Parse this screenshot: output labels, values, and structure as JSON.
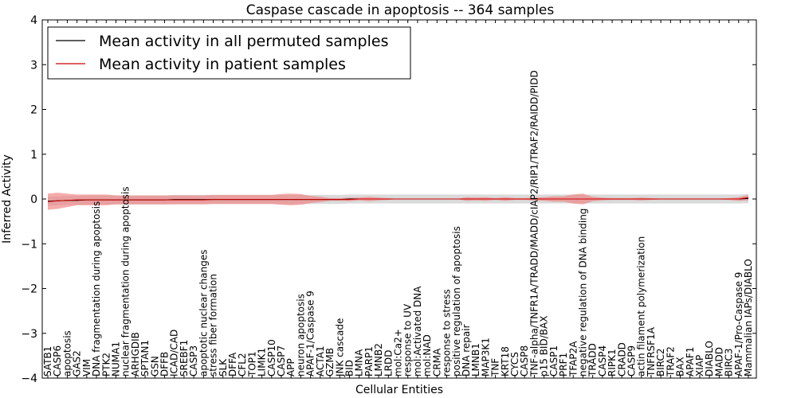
{
  "chart_data": {
    "type": "line",
    "title": "Caspase cascade in apoptosis -- 364 samples",
    "xlabel": "Cellular Entities",
    "ylabel": "Inferred Activity",
    "ylim": [
      -4,
      4
    ],
    "yticks": [
      -4,
      -3,
      -2,
      -1,
      0,
      1,
      2,
      3,
      4
    ],
    "ytick_labels": [
      "−4",
      "−3",
      "−2",
      "−1",
      "0",
      "1",
      "2",
      "3",
      "4"
    ],
    "legend_position": "top-left",
    "categories": [
      "SATB1",
      "CASP6",
      "apoptosis",
      "GAS2",
      "VIM",
      "DNA fragmentation during apoptosis",
      "PTK2",
      "NUMA1",
      "nuclear fragmentation during apoptosis",
      "ARHGDIB",
      "SPTAN1",
      "GSN",
      "DFFB",
      "ICAD/CAD",
      "SREBF1",
      "CASP3",
      "apoptotic nuclear changes",
      "stress fiber formation",
      "SLK",
      "DFFA",
      "CFL2",
      "TOP1",
      "LIMK1",
      "CASP10",
      "CASP7",
      "APP",
      "neuron apoptosis",
      "APAF-1/Caspase 9",
      "ACTA1",
      "GZMB",
      "JNK cascade",
      "BID",
      "LMNA",
      "PARP1",
      "LMNB2",
      "LRDD",
      "mol:Ca2+",
      "response to UV",
      "mol:Activated DNA",
      "mol:NAD",
      "CRMA",
      "response to stress",
      "positive regulation of apoptosis",
      "DNA repair",
      "LMNB1",
      "MAP3K1",
      "TNF",
      "KRT18",
      "CYCS",
      "CASP8",
      "TNF-alpha/TNFR1A/TRADD/MADD/cIAP2/RIP1/TRAF2/RAIDD/PIDD",
      "p15 BID/BAX",
      "CASP1",
      "PRF1",
      "TFAP2A",
      "negative regulation of DNA binding",
      "TRADD",
      "CASP4",
      "RIPK1",
      "CRADD",
      "CASP9",
      "actin filament polymerization",
      "TNFRSF1A",
      "BIRC2",
      "TRAF2",
      "BAX",
      "APAF1",
      "XIAP",
      "DIABLO",
      "MADD",
      "BIRC3",
      "APAF-1/Pro-Caspase 9",
      "Mammalian IAPs/DIABLO"
    ],
    "series": [
      {
        "name": "Mean activity in all permuted samples",
        "color": "#000000",
        "values": [
          -0.05,
          -0.04,
          -0.03,
          -0.03,
          -0.02,
          -0.02,
          -0.02,
          -0.02,
          -0.02,
          -0.02,
          -0.02,
          -0.02,
          -0.02,
          -0.01,
          -0.01,
          -0.01,
          -0.01,
          -0.01,
          -0.01,
          -0.01,
          -0.01,
          -0.01,
          -0.01,
          -0.01,
          -0.01,
          -0.01,
          -0.01,
          -0.01,
          -0.01,
          -0.01,
          -0.01,
          0.0,
          0.0,
          0.0,
          0.0,
          0.0,
          0.0,
          0.0,
          0.0,
          0.0,
          0.0,
          0.0,
          0.0,
          0.0,
          0.0,
          0.0,
          0.0,
          0.0,
          0.0,
          0.0,
          0.0,
          0.0,
          0.0,
          0.0,
          0.0,
          0.0,
          0.0,
          0.0,
          0.0,
          0.0,
          0.0,
          0.0,
          0.0,
          0.0,
          0.0,
          0.0,
          0.0,
          0.0,
          0.0,
          0.0,
          0.0,
          0.0,
          0.01
        ],
        "band": [
          0.1,
          0.1,
          0.1,
          0.1,
          0.1,
          0.1,
          0.1,
          0.1,
          0.1,
          0.1,
          0.1,
          0.1,
          0.1,
          0.1,
          0.1,
          0.1,
          0.1,
          0.1,
          0.1,
          0.1,
          0.1,
          0.1,
          0.1,
          0.1,
          0.1,
          0.1,
          0.1,
          0.1,
          0.1,
          0.1,
          0.1,
          0.1,
          0.1,
          0.1,
          0.1,
          0.1,
          0.1,
          0.1,
          0.1,
          0.1,
          0.1,
          0.1,
          0.1,
          0.1,
          0.1,
          0.1,
          0.1,
          0.1,
          0.1,
          0.1,
          0.1,
          0.1,
          0.1,
          0.1,
          0.1,
          0.1,
          0.1,
          0.1,
          0.1,
          0.1,
          0.1,
          0.1,
          0.1,
          0.1,
          0.1,
          0.1,
          0.1,
          0.1,
          0.1,
          0.1,
          0.1,
          0.1,
          0.1
        ],
        "band_color": "#bbbbbb"
      },
      {
        "name": "Mean activity in patient samples",
        "color": "#cc0000",
        "values": [
          -0.06,
          -0.04,
          -0.03,
          -0.02,
          -0.02,
          -0.02,
          -0.02,
          -0.02,
          -0.02,
          -0.02,
          -0.02,
          -0.02,
          -0.02,
          -0.02,
          -0.02,
          -0.02,
          -0.02,
          -0.01,
          -0.01,
          -0.01,
          -0.01,
          -0.01,
          -0.01,
          -0.01,
          -0.01,
          -0.01,
          -0.01,
          -0.01,
          -0.01,
          -0.01,
          -0.01,
          -0.01,
          0.0,
          0.0,
          0.0,
          0.0,
          0.0,
          0.0,
          0.0,
          0.0,
          0.0,
          0.0,
          0.0,
          0.0,
          0.0,
          0.0,
          0.0,
          0.0,
          0.0,
          0.0,
          0.0,
          0.0,
          0.0,
          0.0,
          0.0,
          0.0,
          0.0,
          0.0,
          0.0,
          0.0,
          0.0,
          0.0,
          0.0,
          0.0,
          0.0,
          0.0,
          0.0,
          0.0,
          0.0,
          0.0,
          0.0,
          0.0,
          0.03
        ],
        "band": [
          0.18,
          0.18,
          0.15,
          0.12,
          0.12,
          0.12,
          0.12,
          0.1,
          0.1,
          0.1,
          0.1,
          0.1,
          0.1,
          0.1,
          0.1,
          0.1,
          0.1,
          0.1,
          0.1,
          0.1,
          0.1,
          0.1,
          0.1,
          0.1,
          0.12,
          0.13,
          0.12,
          0.08,
          0.06,
          0.03,
          0.03,
          0.04,
          0.03,
          0.05,
          0.03,
          0.02,
          0.0,
          0.0,
          0.0,
          0.0,
          0.0,
          0.0,
          0.0,
          0.04,
          0.03,
          0.04,
          0.02,
          0.04,
          0.02,
          0.02,
          0.03,
          0.04,
          0.06,
          0.06,
          0.1,
          0.12,
          0.05,
          0.03,
          0.02,
          0.02,
          0.02,
          0.03,
          0.02,
          0.01,
          0.01,
          0.01,
          0.01,
          0.01,
          0.01,
          0.01,
          0.02,
          0.04,
          0.06
        ],
        "band_color": "#f08080"
      }
    ]
  }
}
